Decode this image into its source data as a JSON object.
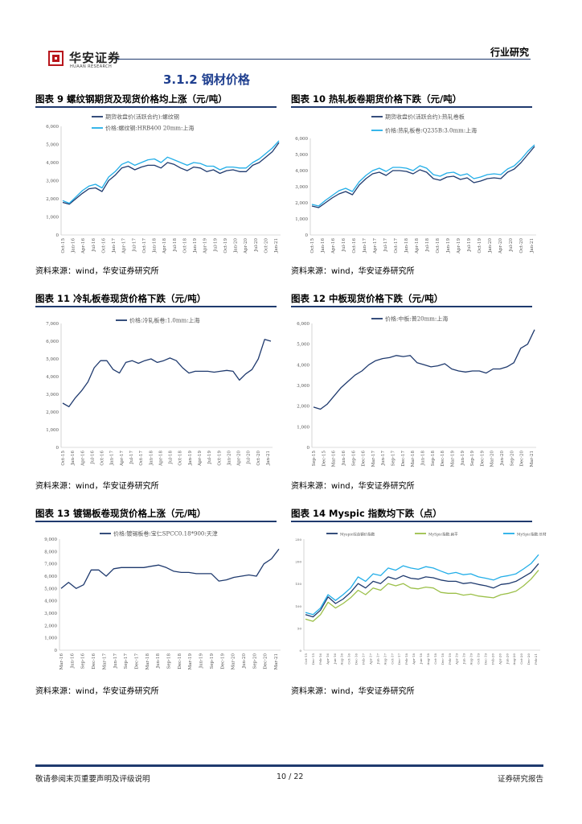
{
  "header": {
    "logo_cn": "华安证券",
    "logo_en": "HUAAN RESEARCH",
    "report_type": "行业研究"
  },
  "section_title": "3.1.2 钢材价格",
  "colors": {
    "dark_blue": "#1f3a6e",
    "light_blue": "#22aee8",
    "green": "#9cc04a",
    "red": "#b8161c"
  },
  "figures": [
    {
      "title": "图表 9 螺纹钢期货及现货价格均上涨（元/吨）",
      "source": "资料来源：wind，华安证券研究所",
      "chart_data": {
        "type": "line",
        "title": "",
        "legend": [
          "期货收盘价(活跃合约):螺纹钢",
          "价格:螺纹钢:HRB400 20mm:上海"
        ],
        "y_ticks": [
          "6,000",
          "5,000",
          "4,000",
          "3,000",
          "2,000",
          "1,000",
          "0"
        ],
        "ylim": [
          0,
          6000
        ],
        "x_ticks": [
          "Oct-15",
          "Jan-16",
          "Apr-16",
          "Jul-16",
          "Oct-16",
          "Jan-17",
          "Apr-17",
          "Jul-17",
          "Oct-17",
          "Jan-18",
          "Apr-18",
          "Jul-18",
          "Oct-18",
          "Jan-19",
          "Apr-19",
          "Jul-19",
          "Oct-19",
          "Jan-20",
          "Apr-20",
          "Jul-20",
          "Oct-20",
          "Jan-21"
        ],
        "series": [
          {
            "name": "期货收盘价(活跃合约):螺纹钢",
            "values": [
              1800,
              1700,
              2000,
              2300,
              2550,
              2600,
              2400,
              3000,
              3300,
              3700,
              3800,
              3600,
              3750,
              3850,
              3850,
              3700,
              4000,
              3900,
              3700,
              3550,
              3750,
              3700,
              3500,
              3600,
              3400,
              3550,
              3600,
              3500,
              3500,
              3850,
              4000,
              4300,
              4600,
              5100
            ]
          },
          {
            "name": "价格:螺纹钢:HRB400 20mm:上海",
            "values": [
              1900,
              1750,
              2100,
              2450,
              2700,
              2800,
              2600,
              3200,
              3500,
              3900,
              4050,
              3850,
              4000,
              4150,
              4200,
              4000,
              4300,
              4150,
              4000,
              3850,
              4000,
              3950,
              3800,
              3800,
              3600,
              3750,
              3750,
              3700,
              3700,
              4000,
              4200,
              4500,
              4800,
              5200
            ]
          }
        ]
      }
    },
    {
      "title": "图表 10 热轧板卷期货价格下跌（元/吨）",
      "source": "资料来源：wind，华安证券研究所",
      "chart_data": {
        "type": "line",
        "title": "",
        "legend": [
          "期货收盘价(活跃合约):热轧卷板",
          "价格:热轧板卷:Q235B:3.0mm:上海"
        ],
        "y_ticks": [
          "6,000",
          "5,000",
          "4,000",
          "3,000",
          "2,000",
          "1,000",
          "0"
        ],
        "ylim": [
          0,
          6000
        ],
        "x_ticks": [
          "Oct-15",
          "Jan-16",
          "Apr-16",
          "Jul-16",
          "Oct-16",
          "Jan-17",
          "Apr-17",
          "Jul-17",
          "Oct-17",
          "Jan-18",
          "Apr-18",
          "Jul-18",
          "Oct-18",
          "Jan-19",
          "Apr-19",
          "Jul-19",
          "Oct-19",
          "Jan-20",
          "Apr-20",
          "Jul-20",
          "Oct-20",
          "Jan-21"
        ],
        "series": [
          {
            "name": "期货收盘价(活跃合约):热轧卷板",
            "values": [
              1800,
              1700,
              2000,
              2300,
              2550,
              2700,
              2500,
              3100,
              3500,
              3800,
              3900,
              3700,
              4000,
              4000,
              3950,
              3800,
              4050,
              3900,
              3500,
              3400,
              3600,
              3650,
              3450,
              3550,
              3250,
              3350,
              3500,
              3550,
              3500,
              3900,
              4100,
              4500,
              5000,
              5500
            ]
          },
          {
            "name": "价格:热轧板卷:Q235B:3.0mm:上海",
            "values": [
              1900,
              1800,
              2150,
              2450,
              2750,
              2900,
              2700,
              3300,
              3700,
              4000,
              4150,
              3950,
              4200,
              4200,
              4150,
              4000,
              4300,
              4150,
              3750,
              3650,
              3850,
              3900,
              3700,
              3800,
              3500,
              3600,
              3750,
              3800,
              3750,
              4100,
              4300,
              4700,
              5200,
              5600
            ]
          }
        ]
      }
    },
    {
      "title": "图表 11 冷轧板卷现货价格下跌（元/吨）",
      "source": "资料来源：wind，华安证券研究所",
      "chart_data": {
        "type": "line",
        "title": "",
        "legend": [
          "价格:冷轧板卷:1.0mm:上海"
        ],
        "y_ticks": [
          "7,000",
          "6,000",
          "5,000",
          "4,000",
          "3,000",
          "2,000",
          "1,000",
          "0"
        ],
        "ylim": [
          0,
          7000
        ],
        "x_ticks": [
          "Oct-15",
          "Jan-16",
          "Apr-16",
          "Jul-16",
          "Oct-16",
          "Jan-17",
          "Apr-17",
          "Jul-17",
          "Oct-17",
          "Jan-18",
          "Apr-18",
          "Jul-18",
          "Oct-18",
          "Jan-19",
          "Apr-19",
          "Jul-19",
          "Oct-19",
          "Jan-20",
          "Apr-20",
          "Jul-20",
          "Oct-20",
          "Jan-21"
        ],
        "series": [
          {
            "name": "价格:冷轧板卷:1.0mm:上海",
            "values": [
              2500,
              2300,
              2800,
              3200,
              3700,
              4500,
              4900,
              4900,
              4400,
              4200,
              4800,
              4900,
              4750,
              4900,
              5000,
              4800,
              4900,
              5050,
              4900,
              4500,
              4200,
              4300,
              4300,
              4300,
              4250,
              4300,
              4350,
              4300,
              3800,
              4150,
              4400,
              5000,
              6100,
              6000
            ]
          }
        ]
      }
    },
    {
      "title": "图表 12 中板现货价格下跌（元/吨）",
      "source": "资料来源：wind，华安证券研究所",
      "chart_data": {
        "type": "line",
        "title": "",
        "legend": [
          "价格:中板:普20mm:上海"
        ],
        "y_ticks": [
          "6,000",
          "5,000",
          "4,000",
          "3,000",
          "2,000",
          "1,000",
          "0"
        ],
        "ylim": [
          0,
          6000
        ],
        "x_ticks": [
          "Sep-15",
          "Dec-15",
          "Mar-16",
          "Jun-16",
          "Sep-16",
          "Dec-16",
          "Mar-17",
          "Jun-17",
          "Sep-17",
          "Dec-17",
          "Mar-18",
          "Jun-18",
          "Sep-18",
          "Dec-18",
          "Mar-19",
          "Jun-19",
          "Sep-19",
          "Dec-19",
          "Mar-20",
          "Jun-20",
          "Sep-20",
          "Dec-20",
          "Mar-21"
        ],
        "series": [
          {
            "name": "价格:中板:普20mm:上海",
            "values": [
              1950,
              1850,
              2100,
              2500,
              2900,
              3200,
              3500,
              3700,
              4000,
              4200,
              4300,
              4350,
              4450,
              4400,
              4450,
              4100,
              4000,
              3900,
              3950,
              4050,
              3800,
              3700,
              3650,
              3700,
              3700,
              3600,
              3800,
              3800,
              3900,
              4100,
              4800,
              5000,
              5700
            ]
          }
        ]
      }
    },
    {
      "title": "图表 13 镀锡板卷现货价格上涨（元/吨）",
      "source": "资料来源：wind，华安证券研究所",
      "chart_data": {
        "type": "line",
        "title": "",
        "legend": [
          "价格:镀锡板卷:宝仁SPCC0.18*900:天津"
        ],
        "y_ticks": [
          "9,000",
          "8,000",
          "7,000",
          "6,000",
          "5,000",
          "4,000",
          "3,000",
          "2,000",
          "1,000",
          "0"
        ],
        "ylim": [
          0,
          9000
        ],
        "x_ticks": [
          "Mar-16",
          "Jun-16",
          "Sep-16",
          "Dec-16",
          "Mar-17",
          "Jun-17",
          "Sep-17",
          "Dec-17",
          "Mar-18",
          "Jun-18",
          "Sep-18",
          "Dec-18",
          "Mar-19",
          "Jun-19",
          "Sep-19",
          "Dec-19",
          "Mar-20",
          "Jun-20",
          "Sep-20",
          "Dec-20",
          "Mar-21"
        ],
        "series": [
          {
            "name": "价格:镀锡板卷:宝仁SPCC0.18*900:天津",
            "values": [
              5000,
              5500,
              5000,
              5300,
              6500,
              6500,
              6000,
              6600,
              6700,
              6700,
              6700,
              6700,
              6800,
              6900,
              6700,
              6400,
              6300,
              6300,
              6200,
              6200,
              6200,
              5600,
              5700,
              5900,
              6000,
              6100,
              6000,
              7000,
              7400,
              8200
            ]
          }
        ]
      }
    },
    {
      "title": "图表 14 Myspic 指数均下跌（点）",
      "source": "资料来源：wind，华安证券研究所",
      "chart_data": {
        "type": "line",
        "title": "",
        "legend": [
          "Myspic综合钢价指数",
          "MySpic指数:扁平",
          "MySpic指数:长材"
        ],
        "y_ticks": [
          "250",
          "200",
          "150",
          "100",
          "50",
          "0"
        ],
        "ylim": [
          0,
          250
        ],
        "x_ticks": [
          "Oct-15",
          "Dec-15",
          "Feb-16",
          "Apr-16",
          "Jun-16",
          "Aug-16",
          "Oct-16",
          "Dec-16",
          "Feb-17",
          "Apr-17",
          "Jun-17",
          "Aug-17",
          "Oct-17",
          "Dec-17",
          "Feb-18",
          "Apr-18",
          "Jun-18",
          "Aug-18",
          "Oct-18",
          "Dec-18",
          "Feb-19",
          "Apr-19",
          "Jun-19",
          "Aug-19",
          "Oct-19",
          "Dec-19",
          "Feb-20",
          "Apr-20",
          "Jun-20",
          "Aug-20",
          "Oct-20",
          "Dec-20",
          "Feb-21"
        ],
        "series": [
          {
            "name": "Myspic综合钢价指数",
            "values": [
              80,
              75,
              90,
              120,
              105,
              115,
              130,
              150,
              140,
              155,
              150,
              165,
              160,
              168,
              162,
              160,
              165,
              163,
              158,
              155,
              155,
              150,
              152,
              148,
              145,
              140,
              148,
              150,
              155,
              165,
              175,
              195
            ]
          },
          {
            "name": "MySpic指数:扁平",
            "values": [
              70,
              65,
              80,
              108,
              95,
              105,
              118,
              135,
              125,
              140,
              135,
              150,
              145,
              150,
              140,
              138,
              142,
              140,
              130,
              128,
              128,
              124,
              126,
              122,
              120,
              118,
              125,
              128,
              133,
              145,
              160,
              180
            ]
          },
          {
            "name": "MySpic指数:长材",
            "values": [
              85,
              80,
              95,
              125,
              112,
              125,
              140,
              165,
              155,
              172,
              168,
              185,
              180,
              190,
              185,
              182,
              188,
              185,
              178,
              172,
              175,
              170,
              172,
              165,
              162,
              158,
              165,
              168,
              172,
              183,
              195,
              215
            ]
          }
        ]
      }
    }
  ],
  "footer": {
    "disclaimer": "敬请参阅末页重要声明及评级说明",
    "page": "10 / 22",
    "doc_type": "证券研究报告"
  }
}
